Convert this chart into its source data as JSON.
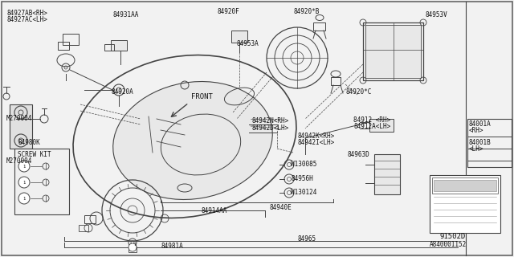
{
  "bg_color": "#f2f2f2",
  "line_color": "#444444",
  "text_color": "#111111",
  "diagram_code": "A840001152",
  "ref_code": "91502D",
  "labels": {
    "84927AB_RH": "84927AB<RH>",
    "84927AC_LH": "84927AC<LH>",
    "84931AA": "84931AA",
    "84920F": "84920F",
    "84920B": "84920*B",
    "84953A": "84953A",
    "84953V": "84953V",
    "84920C": "84920*C",
    "84920A": "84920A",
    "M270004_top": "M270004",
    "M270004_bot": "M270004",
    "84942N_RH": "84942N<RH>",
    "84942D_LH": "84942D<LH>",
    "84942K_RH": "84942K<RH>",
    "84942I_LH": "84942I<LH>",
    "84912_RH": "84912 <RH>",
    "84912A_LH": "84912A<LH>",
    "84963D": "84963D",
    "W130085": "W130085",
    "84956H": "84956H",
    "W130124": "W130124",
    "84940E": "84940E",
    "84914AA": "84914AA",
    "84965": "84965",
    "84981A": "84981A",
    "84980K": "84980K",
    "SCREW_KIT": "SCREW KIT",
    "84001A_RH": "84001A",
    "84001A_RH2": "<RH>",
    "84001B_LH": "84001B",
    "84001B_LH2": "<LH>",
    "FRONT": "FRONT"
  }
}
